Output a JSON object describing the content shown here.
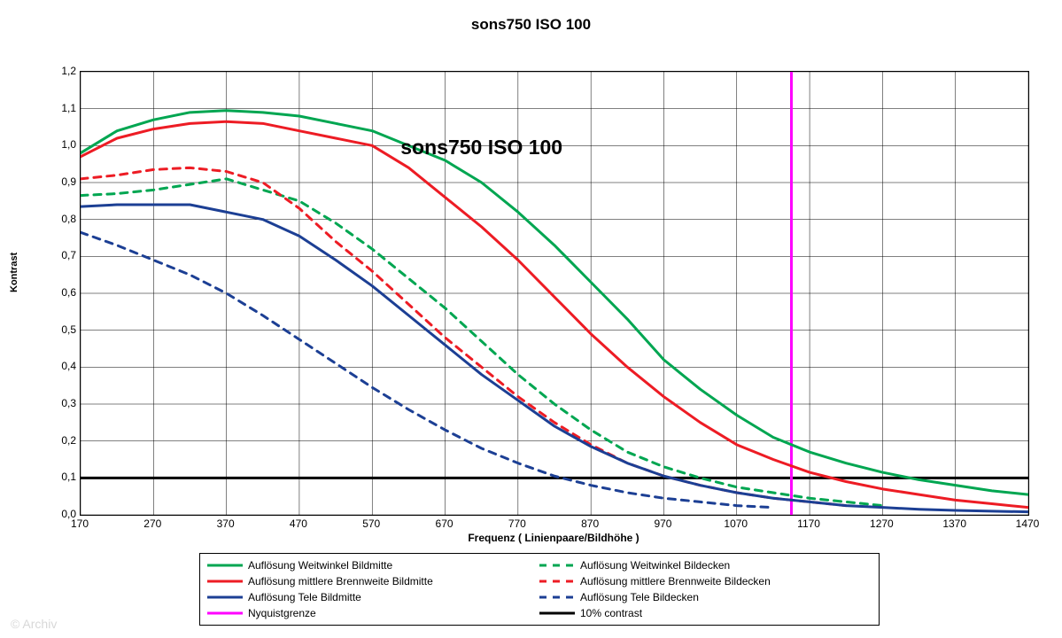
{
  "title": "sons750 ISO 100",
  "inner_title": "sons750 ISO 100",
  "copyright": "© Archiv",
  "axes": {
    "xlabel": "Frequenz ( Linienpaare/Bildhöhe )",
    "ylabel": "Kontrast",
    "xlim": [
      170,
      1470
    ],
    "ylim": [
      0.0,
      1.2
    ],
    "xtick_step": 100,
    "ytick_step": 0.1,
    "xtick_labels": [
      "170",
      "270",
      "370",
      "470",
      "570",
      "670",
      "770",
      "870",
      "970",
      "1070",
      "1170",
      "1270",
      "1370",
      "1470"
    ],
    "ytick_labels": [
      "0,0",
      "0,1",
      "0,2",
      "0,3",
      "0,4",
      "0,5",
      "0,6",
      "0,7",
      "0,8",
      "0,9",
      "1,0",
      "1,1",
      "1,2"
    ],
    "grid_color": "#000000",
    "grid_width": 0.5,
    "background_color": "#ffffff",
    "label_fontsize": 12,
    "tick_fontsize": 12,
    "inner_title_fontsize": 23,
    "inner_title_pos_x": 720,
    "inner_title_pos_y": 1.0
  },
  "reference_lines": {
    "nyquist": {
      "x": 1145,
      "color": "#ff00ff",
      "width": 3
    },
    "contrast10": {
      "y": 0.1,
      "color": "#000000",
      "width": 3
    }
  },
  "series": [
    {
      "key": "ww_mitte",
      "label": "Auflösung Weitwinkel Bildmitte",
      "color": "#00a651",
      "dash": "solid",
      "width": 3,
      "x": [
        170,
        220,
        270,
        320,
        370,
        420,
        470,
        520,
        570,
        620,
        670,
        720,
        770,
        820,
        870,
        920,
        970,
        1020,
        1070,
        1120,
        1170,
        1220,
        1270,
        1320,
        1370,
        1420,
        1470
      ],
      "y": [
        0.98,
        1.04,
        1.07,
        1.09,
        1.095,
        1.09,
        1.08,
        1.06,
        1.04,
        1.0,
        0.96,
        0.9,
        0.82,
        0.73,
        0.63,
        0.53,
        0.42,
        0.34,
        0.27,
        0.21,
        0.17,
        0.14,
        0.115,
        0.095,
        0.08,
        0.065,
        0.055
      ]
    },
    {
      "key": "ww_ecke",
      "label": "Auflösung Weitwinkel Bildecken",
      "color": "#00a651",
      "dash": "8,7",
      "width": 3,
      "x": [
        170,
        220,
        270,
        320,
        370,
        420,
        470,
        520,
        570,
        620,
        670,
        720,
        770,
        820,
        870,
        920,
        970,
        1020,
        1070,
        1120,
        1170,
        1220,
        1270
      ],
      "y": [
        0.865,
        0.87,
        0.88,
        0.895,
        0.91,
        0.88,
        0.85,
        0.79,
        0.72,
        0.64,
        0.56,
        0.47,
        0.38,
        0.3,
        0.23,
        0.17,
        0.13,
        0.1,
        0.075,
        0.06,
        0.045,
        0.035,
        0.025
      ]
    },
    {
      "key": "mb_mitte",
      "label": "Auflösung mittlere Brennweite Bildmitte",
      "color": "#ed1c24",
      "dash": "solid",
      "width": 3,
      "x": [
        170,
        220,
        270,
        320,
        370,
        420,
        470,
        520,
        570,
        620,
        670,
        720,
        770,
        820,
        870,
        920,
        970,
        1020,
        1070,
        1120,
        1170,
        1220,
        1270,
        1320,
        1370,
        1420,
        1470
      ],
      "y": [
        0.97,
        1.02,
        1.045,
        1.06,
        1.065,
        1.06,
        1.04,
        1.02,
        1.0,
        0.94,
        0.86,
        0.78,
        0.69,
        0.59,
        0.49,
        0.4,
        0.32,
        0.25,
        0.19,
        0.15,
        0.115,
        0.09,
        0.07,
        0.055,
        0.04,
        0.03,
        0.02
      ]
    },
    {
      "key": "mb_ecke",
      "label": "Auflösung mittlere Brennweite Bildecken",
      "color": "#ed1c24",
      "dash": "8,7",
      "width": 3,
      "x": [
        170,
        220,
        270,
        320,
        370,
        420,
        470,
        520,
        570,
        620,
        670,
        720,
        770,
        820,
        870,
        920,
        970,
        1020,
        1070,
        1120,
        1170,
        1220
      ],
      "y": [
        0.91,
        0.92,
        0.935,
        0.94,
        0.93,
        0.9,
        0.83,
        0.74,
        0.66,
        0.57,
        0.48,
        0.4,
        0.32,
        0.25,
        0.19,
        0.14,
        0.105,
        0.08,
        0.06,
        0.045,
        0.035,
        0.025
      ]
    },
    {
      "key": "tele_mitte",
      "label": "Auflösung Tele Bildmitte",
      "color": "#1c3f94",
      "dash": "solid",
      "width": 3,
      "x": [
        170,
        220,
        270,
        320,
        370,
        420,
        470,
        520,
        570,
        620,
        670,
        720,
        770,
        820,
        870,
        920,
        970,
        1020,
        1070,
        1120,
        1170,
        1220,
        1270,
        1320,
        1370,
        1420,
        1470
      ],
      "y": [
        0.835,
        0.84,
        0.84,
        0.84,
        0.82,
        0.8,
        0.755,
        0.69,
        0.62,
        0.54,
        0.46,
        0.38,
        0.31,
        0.24,
        0.185,
        0.14,
        0.105,
        0.08,
        0.06,
        0.045,
        0.035,
        0.025,
        0.02,
        0.015,
        0.012,
        0.01,
        0.008
      ]
    },
    {
      "key": "tele_ecke",
      "label": "Auflösung Tele Bildecken",
      "color": "#1c3f94",
      "dash": "8,7",
      "width": 3,
      "x": [
        170,
        220,
        270,
        320,
        370,
        420,
        470,
        520,
        570,
        620,
        670,
        720,
        770,
        820,
        870,
        920,
        970,
        1020,
        1070,
        1120
      ],
      "y": [
        0.765,
        0.73,
        0.69,
        0.65,
        0.6,
        0.54,
        0.475,
        0.41,
        0.345,
        0.285,
        0.23,
        0.18,
        0.14,
        0.105,
        0.08,
        0.06,
        0.045,
        0.035,
        0.025,
        0.02
      ]
    }
  ],
  "legend": {
    "items": [
      {
        "label": "Auflösung Weitwinkel Bildmitte",
        "color": "#00a651",
        "dash": "solid"
      },
      {
        "label": "Auflösung Weitwinkel Bildecken",
        "color": "#00a651",
        "dash": "8,7"
      },
      {
        "label": "Auflösung mittlere Brennweite Bildmitte",
        "color": "#ed1c24",
        "dash": "solid"
      },
      {
        "label": "Auflösung mittlere Brennweite Bildecken",
        "color": "#ed1c24",
        "dash": "8,7"
      },
      {
        "label": "Auflösung Tele Bildmitte",
        "color": "#1c3f94",
        "dash": "solid"
      },
      {
        "label": "Auflösung Tele Bildecken",
        "color": "#1c3f94",
        "dash": "8,7"
      },
      {
        "label": "Nyquistgrenze",
        "color": "#ff00ff",
        "dash": "solid"
      },
      {
        "label": "10% contrast",
        "color": "#000000",
        "dash": "solid"
      }
    ],
    "border_color": "#000000",
    "fontsize": 12
  }
}
